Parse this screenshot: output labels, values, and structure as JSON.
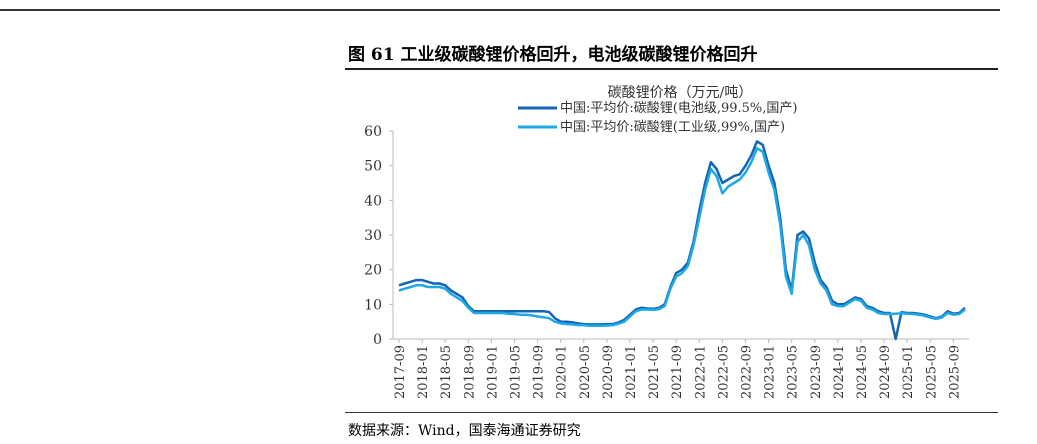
{
  "figure_title": "图 61  工业级碳酸锂价格回升，电池级碳酸锂价格回升",
  "source": "数据来源：Wind，国泰海通证券研究",
  "chart_data": {
    "type": "line",
    "title": "碳酸锂价格（万元/吨）",
    "xlabel": "",
    "ylabel": "",
    "ylim": [
      0,
      60
    ],
    "yticks": [
      0,
      10,
      20,
      30,
      40,
      50,
      60
    ],
    "start_month": "2017-09",
    "xtick_labels": [
      "2017-09",
      "2018-01",
      "2018-05",
      "2018-09",
      "2019-01",
      "2019-05",
      "2019-09",
      "2020-01",
      "2020-05",
      "2020-09",
      "2021-01",
      "2021-05",
      "2021-09",
      "2022-01",
      "2022-05",
      "2022-09",
      "2023-01",
      "2023-05",
      "2023-09",
      "2024-01",
      "2024-05",
      "2024-09",
      "2025-01",
      "2025-05",
      "2025-09"
    ],
    "legend_position": "top",
    "series": [
      {
        "name": "中国:平均价:碳酸锂(电池级,99.5%,国产)",
        "color": "#1565b5",
        "values": [
          15.5,
          16,
          16.5,
          17,
          17,
          16.5,
          16,
          16,
          15.5,
          14,
          13,
          12,
          9.5,
          8,
          8,
          8,
          8,
          8,
          8,
          8,
          8,
          8,
          8,
          8,
          8,
          8,
          7.8,
          6,
          5,
          5,
          4.8,
          4.5,
          4.3,
          4.2,
          4.2,
          4.2,
          4.3,
          4.3,
          4.8,
          5.5,
          7,
          8.5,
          9,
          8.8,
          8.7,
          9,
          10,
          15,
          19,
          20,
          22,
          28,
          37,
          45,
          51,
          49,
          45,
          46,
          47,
          47.5,
          50,
          53,
          57,
          56,
          50,
          45,
          35,
          20,
          14,
          30,
          31,
          29,
          22,
          17,
          15,
          11,
          10,
          10,
          11,
          12,
          11.5,
          9.5,
          9,
          8,
          7.5,
          7.5,
          0,
          7.7,
          7.5,
          7.5,
          7.3,
          7,
          6.5,
          6,
          6.5,
          8,
          7.3,
          7.5,
          9
        ]
      },
      {
        "name": "中国:平均价:碳酸锂(工业级,99%,国产)",
        "color": "#1ea8e8",
        "values": [
          14,
          14.5,
          15,
          15.5,
          15.5,
          15,
          15,
          15,
          14.5,
          13,
          12,
          11,
          9,
          7.5,
          7.5,
          7.5,
          7.5,
          7.5,
          7.5,
          7.3,
          7.2,
          7,
          7,
          6.8,
          6.5,
          6.3,
          6,
          5,
          4.5,
          4.3,
          4.2,
          4,
          4,
          3.8,
          3.8,
          3.8,
          3.9,
          4,
          4.4,
          5,
          6.5,
          8,
          8.5,
          8.5,
          8.4,
          8.6,
          9.5,
          14.5,
          18,
          19,
          21,
          27,
          35,
          43,
          49,
          47,
          42,
          44,
          45,
          46,
          48,
          51,
          55,
          54,
          48,
          43,
          33,
          18,
          13,
          28,
          30,
          27,
          20,
          16,
          14,
          10,
          9.5,
          9.5,
          10.5,
          11.5,
          11,
          9,
          8.5,
          7.5,
          7.2,
          7.2,
          7.3,
          7.4,
          7.3,
          7.2,
          7,
          6.7,
          6.2,
          5.8,
          6.2,
          7.5,
          7,
          7.2,
          8.5
        ]
      }
    ]
  }
}
